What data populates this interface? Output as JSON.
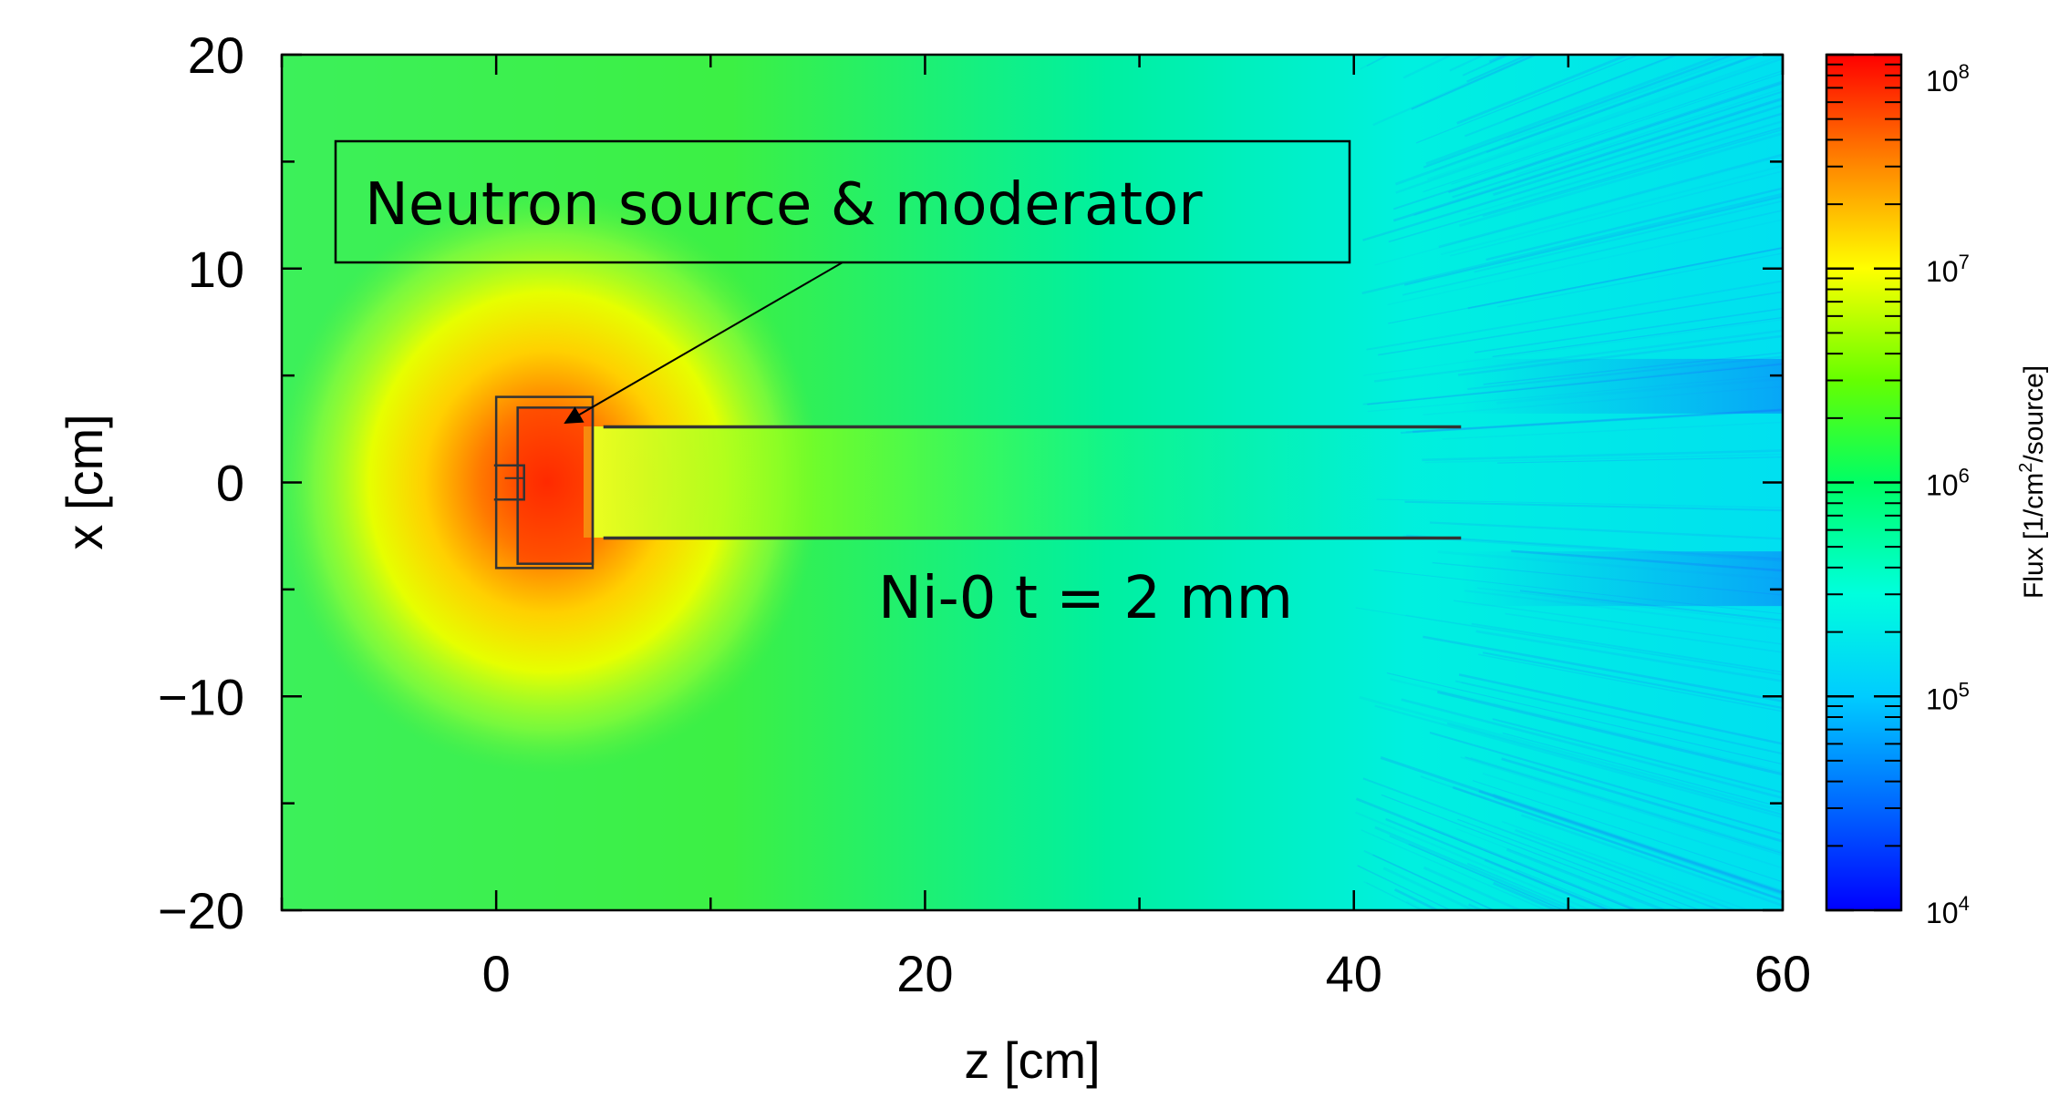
{
  "chart_data": {
    "type": "heatmap",
    "xlabel": "z [cm]",
    "ylabel": "x [cm]",
    "xlim": [
      -10,
      60
    ],
    "ylim": [
      -20,
      20
    ],
    "x_ticks": [
      0,
      20,
      40,
      60
    ],
    "x_tick_labels": [
      "0",
      "20",
      "40",
      "60"
    ],
    "y_ticks": [
      20,
      10,
      0,
      -10,
      -20
    ],
    "y_tick_labels": [
      "20",
      "10",
      "0",
      "−10",
      "−20"
    ],
    "colorbar": {
      "title": "Flux [1/cm",
      "title_sup": "2",
      "title_end": "/source]",
      "scale": "log",
      "range": [
        10000,
        100000000
      ],
      "tick_values": [
        100000000,
        10000000,
        1000000,
        100000,
        10000
      ],
      "tick_bases": [
        "10",
        "10",
        "10",
        "10",
        "10"
      ],
      "tick_exps": [
        "8",
        "7",
        "6",
        "5",
        "4"
      ],
      "colors": [
        "#0000ff",
        "#00aaff",
        "#00ffff",
        "#00ff80",
        "#00ff00",
        "#80ff00",
        "#ffff00",
        "#ffaa00",
        "#ff6600",
        "#ff0000"
      ]
    },
    "annotations": [
      {
        "text": "Neutron source & moderator",
        "boxed": true,
        "arrow_to": [
          3,
          3
        ]
      },
      {
        "text": "Ni-0 t = 2 mm",
        "at": [
          18,
          -5
        ]
      }
    ],
    "structures": {
      "source_box": {
        "z": [
          1.0,
          4.5
        ],
        "x": [
          -3.8,
          3.5
        ]
      },
      "outer_frame": {
        "z": [
          0.0,
          4.5
        ],
        "x": [
          -4.0,
          4.0
        ]
      },
      "guide_upper_x": 2.6,
      "guide_lower_x": -2.6,
      "guide_z": [
        5.0,
        45.0
      ]
    }
  }
}
